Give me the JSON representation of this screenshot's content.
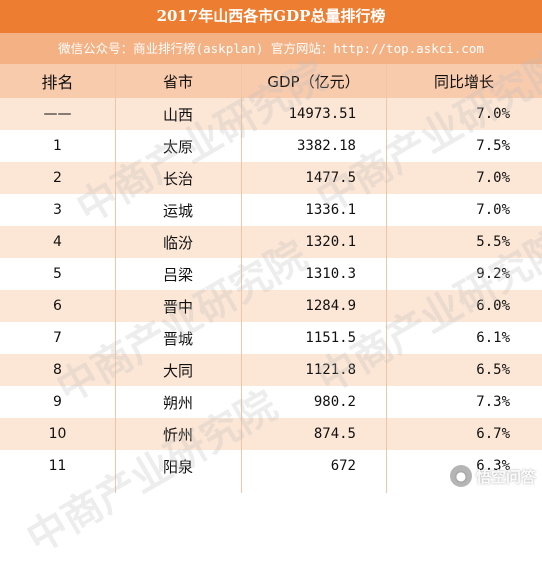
{
  "header": {
    "title": "2017年山西各市GDP总量排行榜",
    "subtitle": "微信公众号：商业排行榜(askplan)  官方网站：http://top.askci.com"
  },
  "table": {
    "columns": [
      "排名",
      "省市",
      "GDP（亿元）",
      "同比增长"
    ],
    "rows": [
      {
        "rank": "——",
        "city": "山西",
        "gdp": "14973.51",
        "growth": "7.0%"
      },
      {
        "rank": "1",
        "city": "太原",
        "gdp": "3382.18",
        "growth": "7.5%"
      },
      {
        "rank": "2",
        "city": "长治",
        "gdp": "1477.5",
        "growth": "7.0%"
      },
      {
        "rank": "3",
        "city": "运城",
        "gdp": "1336.1",
        "growth": "7.0%"
      },
      {
        "rank": "4",
        "city": "临汾",
        "gdp": "1320.1",
        "growth": "5.5%"
      },
      {
        "rank": "5",
        "city": "吕梁",
        "gdp": "1310.3",
        "growth": "9.2%"
      },
      {
        "rank": "6",
        "city": "晋中",
        "gdp": "1284.9",
        "growth": "6.0%"
      },
      {
        "rank": "7",
        "city": "晋城",
        "gdp": "1151.5",
        "growth": "6.1%"
      },
      {
        "rank": "8",
        "city": "大同",
        "gdp": "1121.8",
        "growth": "6.5%"
      },
      {
        "rank": "9",
        "city": "朔州",
        "gdp": "980.2",
        "growth": "7.3%"
      },
      {
        "rank": "10",
        "city": "忻州",
        "gdp": "874.5",
        "growth": "6.7%"
      },
      {
        "rank": "11",
        "city": "阳泉",
        "gdp": "672",
        "growth": "6.3%"
      }
    ]
  },
  "watermark": {
    "text": "中商产业研究院",
    "logo_icon": "wukong-icon",
    "logo_text": "悟空问答"
  },
  "colors": {
    "title_bg": "#ed7d31",
    "subtitle_bg": "#f4b183",
    "header_bg": "#f9cbad",
    "odd_row_bg": "#fce6d6"
  }
}
